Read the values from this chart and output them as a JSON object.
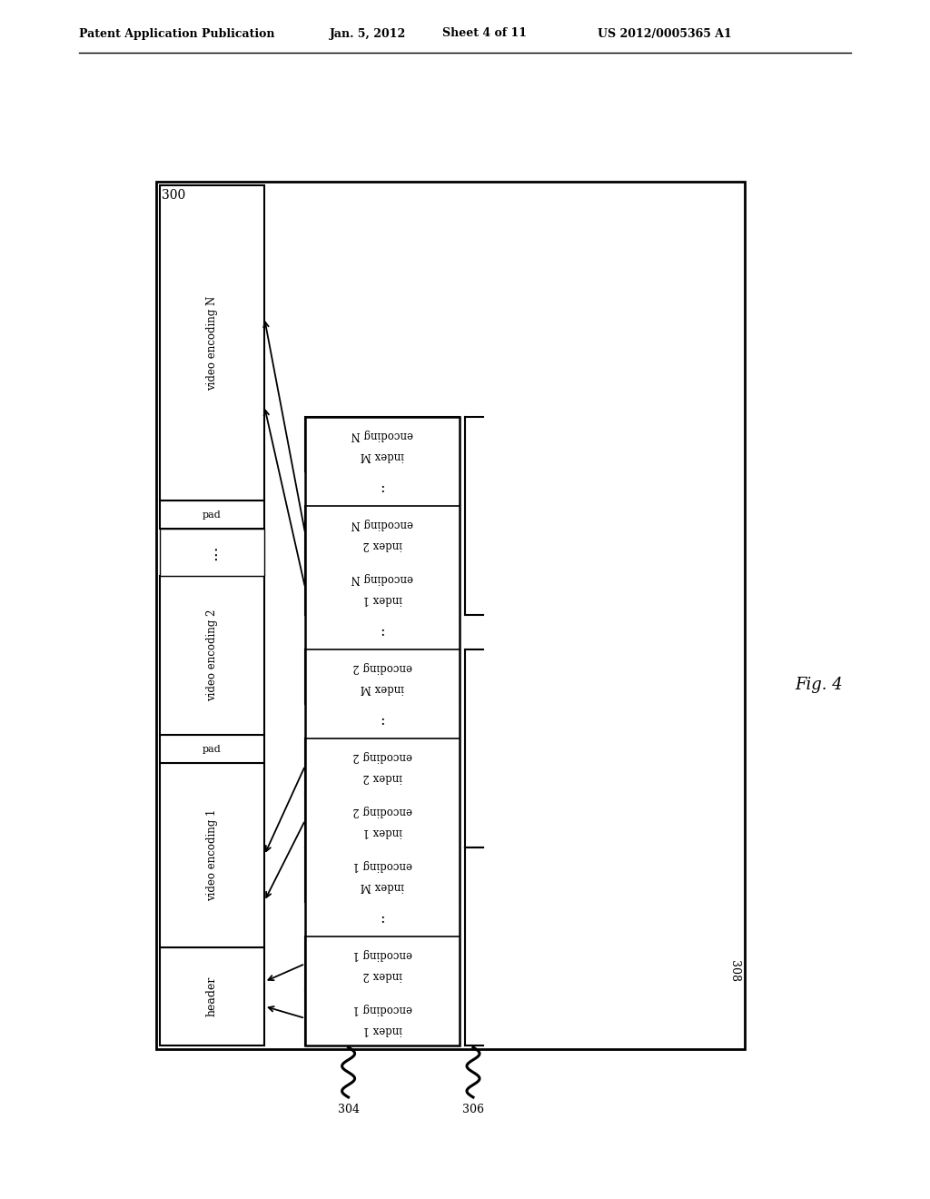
{
  "header_text": "Patent Application Publication",
  "date_text": "Jan. 5, 2012",
  "sheet_text": "Sheet 4 of 11",
  "patent_text": "US 2012/0005365 A1",
  "fig_label": "Fig. 4",
  "diagram_label": "300",
  "label_304": "304",
  "label_306": "306",
  "label_308": "308",
  "background_color": "#ffffff",
  "text_color": "#000000",
  "rows": [
    [
      "encoding 1\nindex 1",
      false
    ],
    [
      "encoding 1\nindex 2",
      false
    ],
    [
      "...",
      true
    ],
    [
      "encoding 1\nindex M",
      false
    ],
    [
      "encoding 2\nindex 1",
      false
    ],
    [
      "encoding 2\nindex 2",
      false
    ],
    [
      "...",
      true
    ],
    [
      "encoding 2\nindex M",
      false
    ],
    [
      "...",
      true
    ],
    [
      "encoding N\nindex 1",
      false
    ],
    [
      "encoding N\nindex 2",
      false
    ],
    [
      "...",
      true
    ],
    [
      "encoding N\nindex M",
      false
    ]
  ]
}
